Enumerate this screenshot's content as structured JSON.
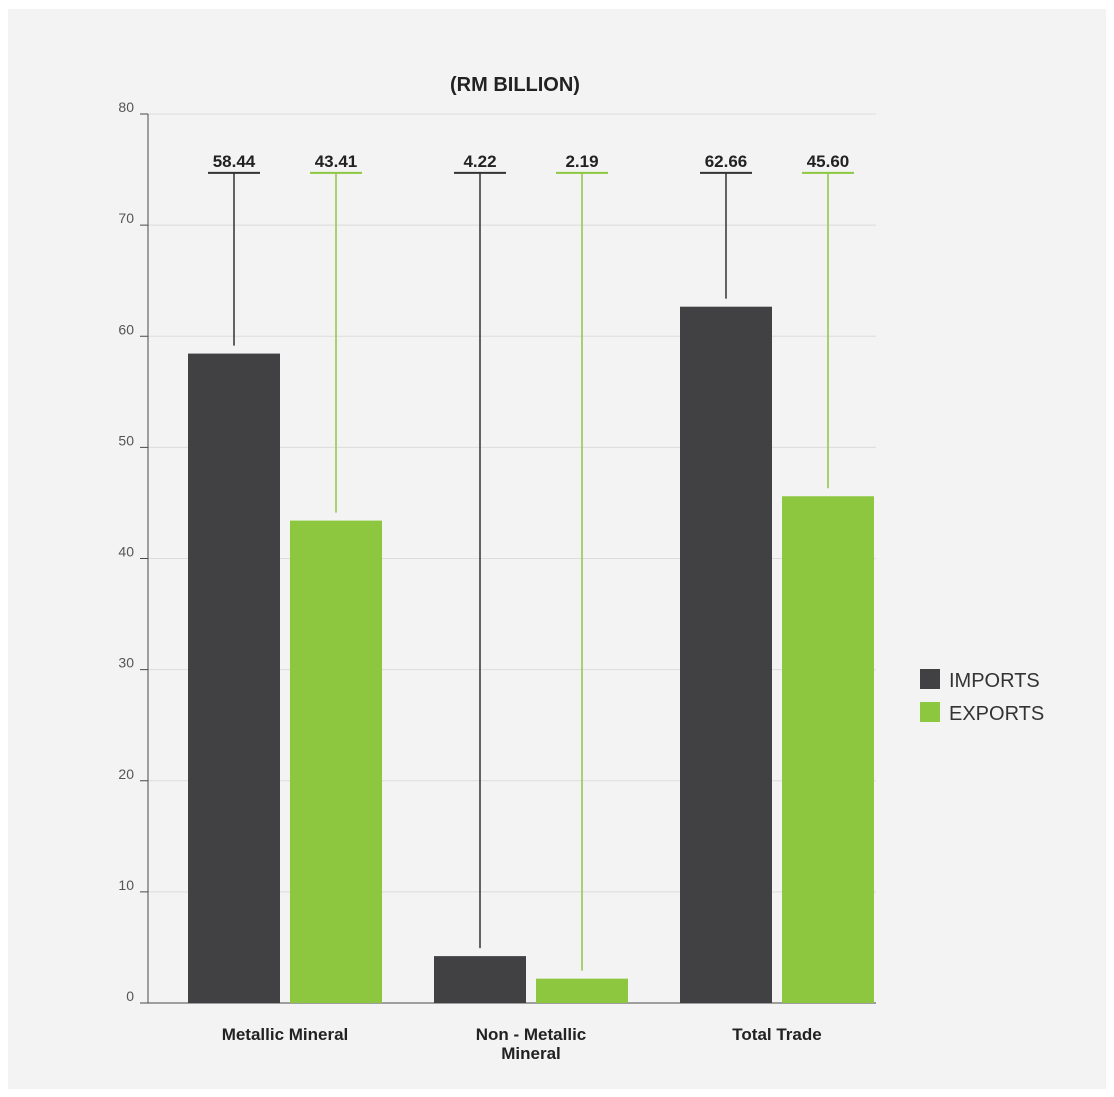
{
  "chart_data": {
    "type": "bar",
    "title": "(RM BILLION)",
    "xlabel": "",
    "ylabel": "",
    "ylim": [
      0,
      80
    ],
    "yticks": [
      0,
      10,
      20,
      30,
      40,
      50,
      60,
      70,
      80
    ],
    "grid": true,
    "legend_position": "right",
    "categories": [
      [
        "Metallic Mineral"
      ],
      [
        "Non - Metallic",
        "Mineral"
      ],
      [
        "Total Trade"
      ]
    ],
    "series": [
      {
        "name": "IMPORTS",
        "color": "#414143",
        "values": [
          58.44,
          4.22,
          62.66
        ],
        "labels": [
          "58.44",
          "4.22",
          "62.66"
        ]
      },
      {
        "name": "EXPORTS",
        "color": "#8dc63f",
        "values": [
          43.41,
          2.19,
          45.6
        ],
        "labels": [
          "43.41",
          "2.19",
          "45.60"
        ]
      }
    ],
    "label_anchor_value": 74.7
  }
}
